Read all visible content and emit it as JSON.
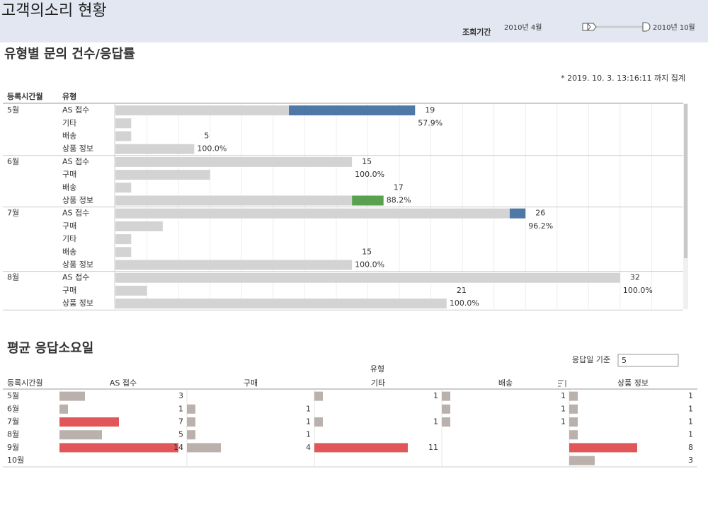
{
  "header": {
    "title": "고객의소리 현황",
    "filter_label": "조회기간",
    "range_start": "2010년 4월",
    "range_end": "2010년 10월"
  },
  "chart_data": [
    {
      "type": "bar",
      "title": "유형별 문의 건수/응답률",
      "note": "* 2019. 10. 3. 13:16:11 까지 집계",
      "row_label": "등록시간월",
      "column_label": "유형",
      "xlim": [
        0,
        36
      ],
      "grid_lines": [
        2,
        4,
        6,
        8,
        10,
        12,
        14,
        16,
        18,
        20,
        22,
        24,
        26,
        28,
        30,
        32,
        34
      ],
      "color": "#d3d3d3",
      "type_colors": {
        "AS 접수": "#4e79a7",
        "상품 정보": "#59a14f"
      },
      "groups": [
        {
          "month": "5월",
          "rows": [
            {
              "type": "AS 접수",
              "values": [
                11,
                8
              ],
              "total": 19,
              "rate": 57.9,
              "rate_label": "57.9%"
            },
            {
              "type": "기타",
              "values": [
                1
              ]
            },
            {
              "type": "배송",
              "values": [
                1
              ]
            },
            {
              "type": "상품 정보",
              "values": [
                5
              ],
              "total": 5,
              "rate": 100,
              "rate_label": "100.0%"
            }
          ]
        },
        {
          "month": "6월",
          "rows": [
            {
              "type": "AS 접수",
              "values": [
                15
              ],
              "total": 15,
              "rate": 100,
              "rate_label": "100.0%"
            },
            {
              "type": "구매",
              "values": [
                6
              ]
            },
            {
              "type": "배송",
              "values": [
                1
              ]
            },
            {
              "type": "상품 정보",
              "values": [
                15,
                2
              ],
              "total": 17,
              "rate": 88.2,
              "rate_label": "88.2%"
            }
          ]
        },
        {
          "month": "7월",
          "rows": [
            {
              "type": "AS 접수",
              "values": [
                25,
                1
              ],
              "total": 26,
              "rate": 96.2,
              "rate_label": "96.2%"
            },
            {
              "type": "구매",
              "values": [
                3
              ]
            },
            {
              "type": "기타",
              "values": [
                1
              ]
            },
            {
              "type": "배송",
              "values": [
                1
              ]
            },
            {
              "type": "상품 정보",
              "values": [
                15
              ],
              "total": 15,
              "rate": 100,
              "rate_label": "100.0%"
            }
          ]
        },
        {
          "month": "8월",
          "rows": [
            {
              "type": "AS 접수",
              "values": [
                32
              ],
              "total": 32,
              "rate": 100,
              "rate_label": "100.0%"
            },
            {
              "type": "구매",
              "values": [
                2
              ]
            },
            {
              "type": "상품 정보",
              "values": [
                21
              ],
              "total": 21,
              "rate": 100,
              "rate_label": "100.0%"
            }
          ]
        }
      ]
    },
    {
      "type": "bar",
      "title": "평균 응답소요일",
      "row_label": "등록시간월",
      "column_label": "유형",
      "threshold_label": "응답일 기준",
      "threshold": 5,
      "categories": [
        "5월",
        "6월",
        "7월",
        "8월",
        "9월",
        "10월"
      ],
      "xlim": [
        0,
        15
      ],
      "color": "#bab0ac",
      "highlight_color": "#e15759",
      "series": [
        {
          "name": "AS 접수",
          "values": [
            3,
            1,
            7,
            5,
            14,
            null
          ]
        },
        {
          "name": "구매",
          "values": [
            null,
            1,
            1,
            1,
            4,
            null
          ]
        },
        {
          "name": "기타",
          "values": [
            1,
            null,
            1,
            null,
            11,
            null
          ]
        },
        {
          "name": "배송",
          "values": [
            1,
            1,
            1,
            null,
            null,
            null
          ]
        },
        {
          "name": "상품 정보",
          "values": [
            1,
            1,
            1,
            1,
            8,
            3
          ]
        }
      ]
    }
  ]
}
